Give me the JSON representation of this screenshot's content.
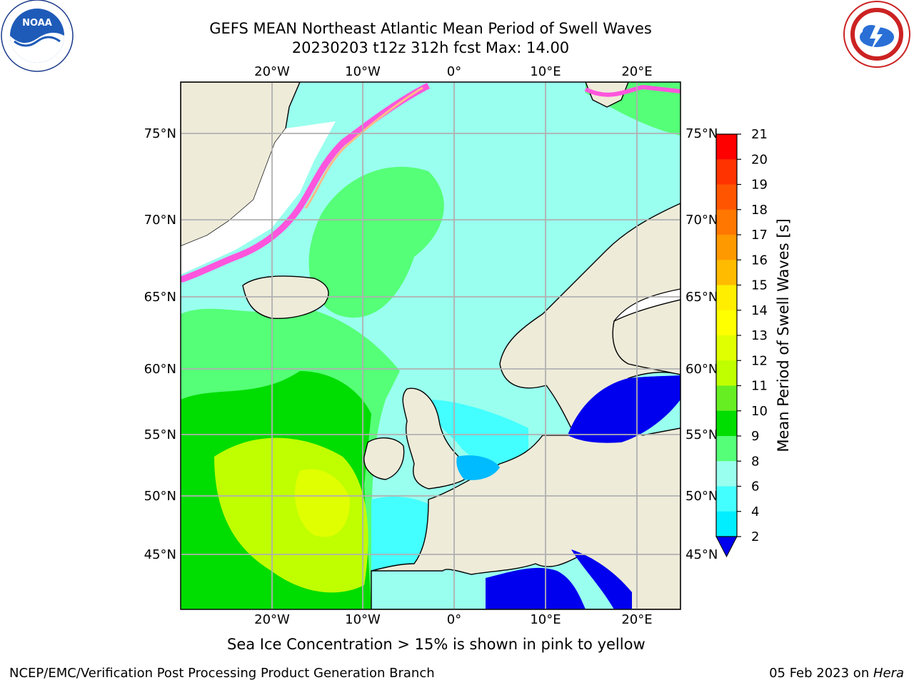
{
  "title_line1": "GEFS MEAN Northeast Atlantic Mean Period of Swell Waves",
  "title_line2": "20230203 t12z 312h fcst   Max: 14.00",
  "subtitle": "Sea Ice Concentration > 15% is shown in pink to yellow",
  "footer_left": "NCEP/EMC/Verification Post Processing Product Generation Branch",
  "footer_right_date": "05 Feb 2023 on ",
  "footer_right_host": "Hera",
  "map": {
    "lon_labels": [
      "20°W",
      "10°W",
      "0°",
      "10°E",
      "20°E"
    ],
    "lat_labels": [
      "75°N",
      "70°N",
      "65°N",
      "60°N",
      "55°N",
      "50°N",
      "45°N"
    ]
  },
  "colorbar": {
    "label": "Mean Period of Swell Waves [s]",
    "ticks": [
      "21",
      "20",
      "19",
      "18",
      "17",
      "16",
      "15",
      "14",
      "13",
      "12",
      "11",
      "10",
      "9",
      "8",
      "6",
      "4",
      "2"
    ],
    "colors": [
      "#ff0000",
      "#ff3300",
      "#ff5500",
      "#ff7700",
      "#ff9900",
      "#ffbb00",
      "#ffee00",
      "#ffff00",
      "#e0ff00",
      "#bfff00",
      "#66ee22",
      "#00dd00",
      "#55ff77",
      "#99ffee",
      "#44ffff",
      "#00eeff",
      "#00bbff",
      "#0077ff"
    ],
    "extend_color": "#0000ee"
  },
  "logos": {
    "left": "noaa-logo",
    "right": "nws-logo"
  }
}
